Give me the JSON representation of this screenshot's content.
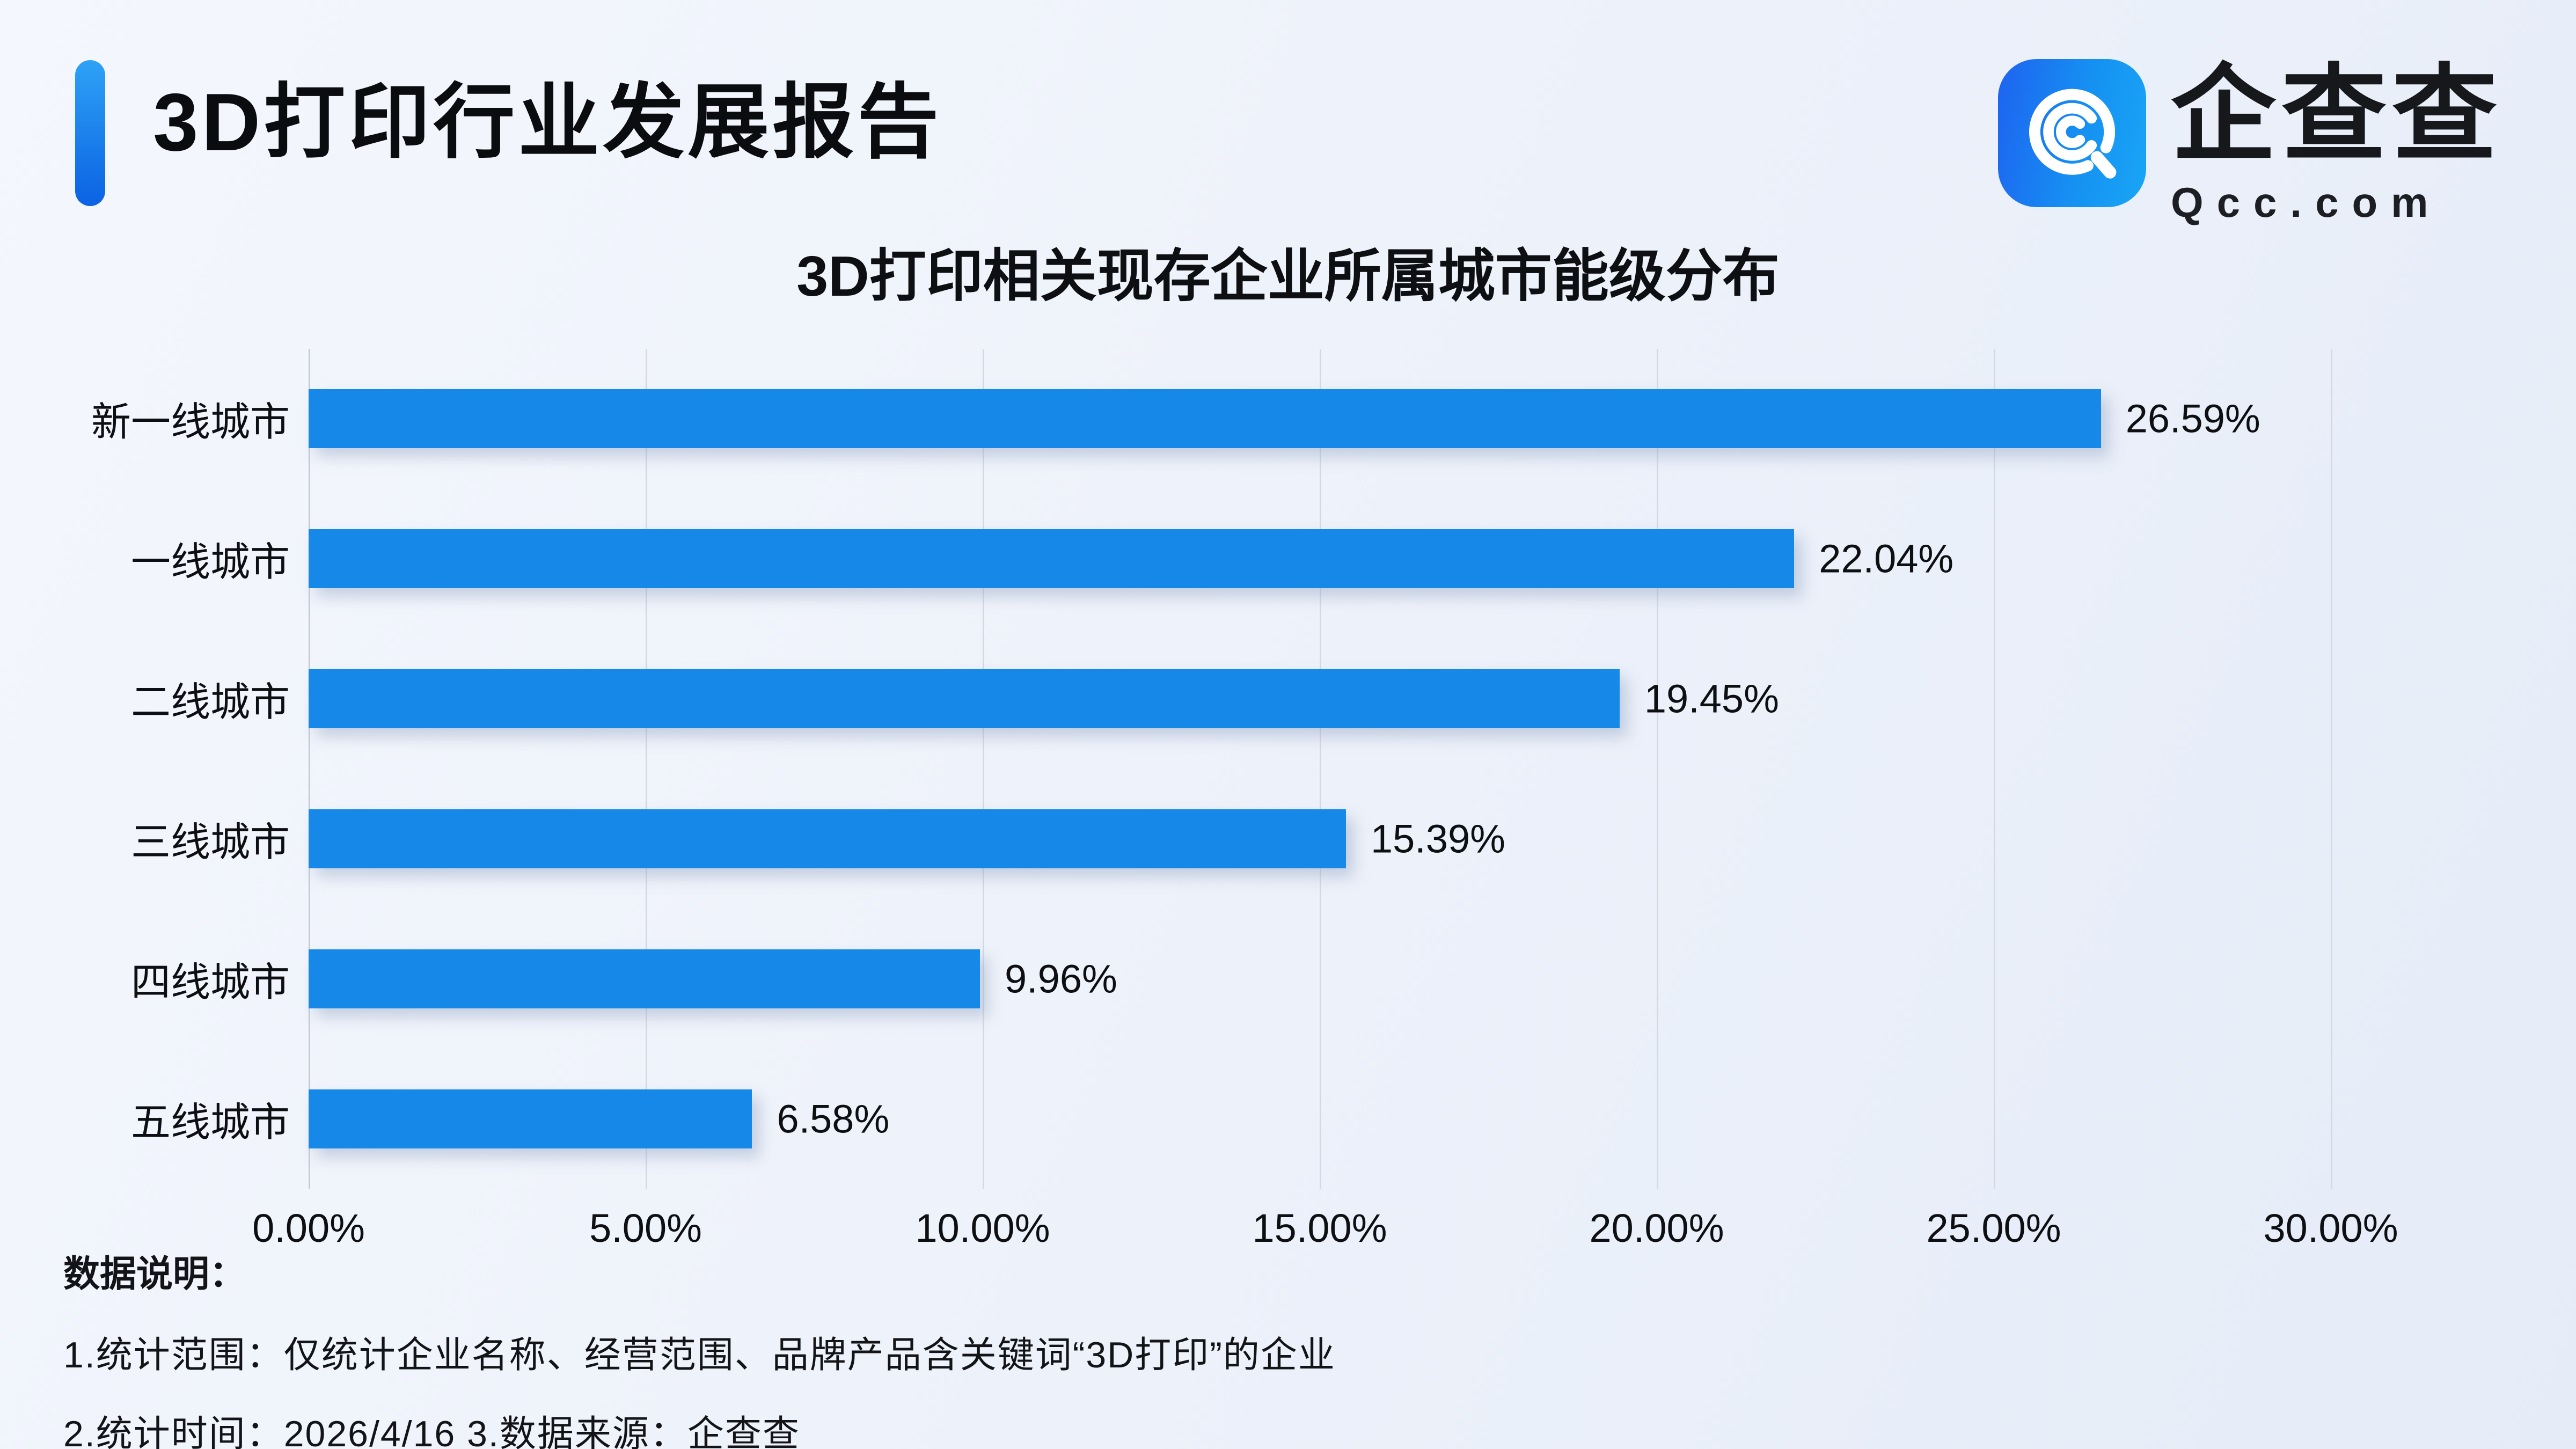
{
  "header": {
    "title": "3D打印行业发展报告"
  },
  "logo": {
    "brand_cn": "企查查",
    "brand_en": "Qcc.com",
    "icon": "qcc-spiral-icon",
    "icon_gradient": [
      "#1E63F0",
      "#18A6F6"
    ]
  },
  "chart_data": {
    "type": "bar",
    "orientation": "horizontal",
    "title": "3D打印相关现存企业所属城市能级分布",
    "categories": [
      "新一线城市",
      "一线城市",
      "二线城市",
      "三线城市",
      "四线城市",
      "五线城市"
    ],
    "values": [
      26.59,
      22.04,
      19.45,
      15.39,
      9.96,
      6.58
    ],
    "value_labels": [
      "26.59%",
      "22.04%",
      "19.45%",
      "15.39%",
      "9.96%",
      "6.58%"
    ],
    "x_ticks": [
      "0.00%",
      "5.00%",
      "10.00%",
      "15.00%",
      "20.00%",
      "25.00%",
      "30.00%"
    ],
    "xlim": [
      0,
      30
    ],
    "xlabel": "",
    "ylabel": "",
    "grid": true,
    "legend": false,
    "bar_color": "#1588E8"
  },
  "notes": {
    "heading": "数据说明：",
    "line1": "1.统计范围：仅统计企业名称、经营范围、品牌产品含关键词“3D打印”的企业",
    "line2": "2.统计时间：2026/4/16  3.数据来源：企查查"
  }
}
